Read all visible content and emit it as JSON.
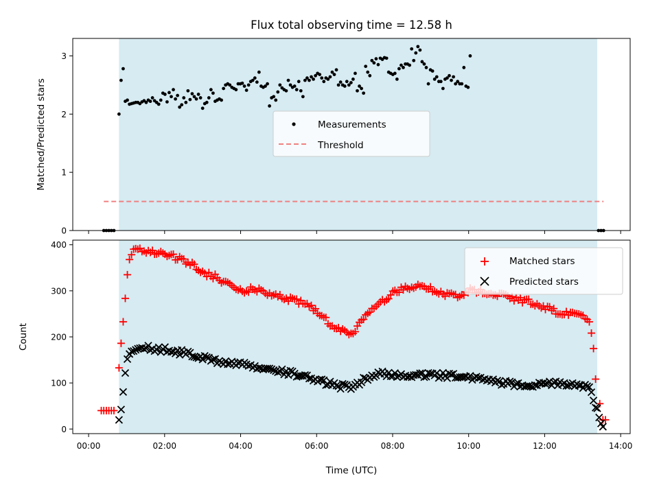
{
  "chart_data": {
    "title": "Flux total observing time = 12.58 h",
    "type": "scatter",
    "shaded_interval": {
      "start": "00:48",
      "end": "13:23",
      "color": "#add8e6"
    },
    "x_axis": {
      "label": "Time (UTC)",
      "ticks": [
        "00:00",
        "02:00",
        "04:00",
        "06:00",
        "08:00",
        "10:00",
        "12:00",
        "14:00"
      ],
      "xlim": [
        "-00:25",
        "14:15"
      ]
    },
    "panels": [
      {
        "name": "top",
        "ylabel": "Matched/Predicted stars",
        "ylim": [
          0,
          3.3
        ],
        "yticks": [
          "0",
          "1",
          "2",
          "3"
        ],
        "legend": {
          "position": "center",
          "entries": [
            "Measurements",
            "Threshold"
          ]
        },
        "series": [
          {
            "name": "Measurements",
            "marker": "dot",
            "color": "#000000",
            "points_before": {
              "x": [
                "00:24",
                "00:28",
                "00:32",
                "00:36",
                "00:40"
              ],
              "y": [
                0,
                0,
                0,
                0,
                0
              ]
            },
            "points_after": {
              "x": [
                "13:25",
                "13:29",
                "13:33"
              ],
              "y": [
                0,
                0,
                0
              ]
            },
            "during": {
              "start": "00:48",
              "end": "13:23",
              "step_minutes": 3.3,
              "y": [
                2.0,
                2.58,
                2.78,
                2.22,
                2.24,
                2.17,
                2.18,
                2.19,
                2.2,
                2.2,
                2.18,
                2.21,
                2.23,
                2.2,
                2.24,
                2.22,
                2.28,
                2.23,
                2.2,
                2.17,
                2.24,
                2.36,
                2.34,
                2.21,
                2.37,
                2.3,
                2.42,
                2.26,
                2.32,
                2.12,
                2.16,
                2.28,
                2.2,
                2.4,
                2.25,
                2.35,
                2.3,
                2.26,
                2.34,
                2.28,
                2.1,
                2.18,
                2.2,
                2.28,
                2.42,
                2.36,
                2.22,
                2.24,
                2.26,
                2.24,
                2.44,
                2.5,
                2.52,
                2.5,
                2.46,
                2.44,
                2.42,
                2.52,
                2.52,
                2.53,
                2.48,
                2.41,
                2.5,
                2.56,
                2.58,
                2.62,
                2.55,
                2.72,
                2.48,
                2.46,
                2.48,
                2.52,
                2.14,
                2.28,
                2.3,
                2.24,
                2.38,
                2.5,
                2.45,
                2.42,
                2.4,
                2.58,
                2.5,
                2.46,
                2.48,
                2.42,
                2.56,
                2.4,
                2.3,
                2.58,
                2.62,
                2.58,
                2.64,
                2.6,
                2.66,
                2.7,
                2.68,
                2.62,
                2.56,
                2.62,
                2.6,
                2.64,
                2.72,
                2.68,
                2.76,
                2.5,
                2.55,
                2.5,
                2.48,
                2.56,
                2.5,
                2.54,
                2.6,
                2.7,
                2.4,
                2.48,
                2.44,
                2.36,
                2.82,
                2.72,
                2.66,
                2.92,
                2.88,
                2.95,
                2.85,
                2.96,
                2.94,
                2.97,
                2.96,
                2.72,
                2.7,
                2.68,
                2.7,
                2.6,
                2.78,
                2.84,
                2.8,
                2.86,
                2.86,
                2.84,
                3.12,
                2.92,
                3.05,
                3.16,
                3.1,
                2.9,
                2.86,
                2.8,
                2.52,
                2.76,
                2.74,
                2.6,
                2.64,
                2.56,
                2.56,
                2.44,
                2.6,
                2.62,
                2.66,
                2.58,
                2.64,
                2.52,
                2.56,
                2.52,
                2.52,
                2.8,
                2.48,
                2.46,
                3.0
              ]
            }
          },
          {
            "name": "Threshold",
            "style": "dashed",
            "color": "#f08080",
            "x": [
              "00:24",
              "13:33"
            ],
            "y": [
              0.5,
              0.5
            ]
          }
        ]
      },
      {
        "name": "bottom",
        "ylabel": "Count",
        "ylim": [
          -10,
          410
        ],
        "yticks": [
          "0",
          "100",
          "200",
          "300",
          "400"
        ],
        "legend": {
          "position": "top-right",
          "entries": [
            "Matched stars",
            "Predicted stars"
          ]
        },
        "series": [
          {
            "name": "Matched stars",
            "marker": "plus",
            "color": "#ff0000",
            "points_before": {
              "x": [
                "00:20",
                "00:24",
                "00:28",
                "00:32",
                "00:36",
                "00:40"
              ],
              "y": [
                40,
                40,
                40,
                40,
                40,
                40
              ]
            },
            "points_after": {
              "x": [
                "13:27",
                "13:32",
                "13:36"
              ],
              "y": [
                55,
                20,
                20
              ]
            },
            "during_start": "00:48",
            "during_end": "13:23",
            "step_minutes": 3.3,
            "anchors": {
              "t": [
                "00:48",
                "00:56",
                "01:00",
                "01:04",
                "01:10",
                "01:20",
                "01:40",
                "02:00",
                "02:20",
                "02:40",
                "03:00",
                "03:20",
                "03:40",
                "04:00",
                "04:20",
                "04:40",
                "05:00",
                "05:20",
                "05:40",
                "06:00",
                "06:20",
                "06:40",
                "06:50",
                "07:00",
                "07:20",
                "07:40",
                "08:00",
                "08:20",
                "08:40",
                "09:00",
                "09:20",
                "09:40",
                "10:00",
                "10:20",
                "10:40",
                "11:00",
                "11:20",
                "11:40",
                "12:00",
                "12:20",
                "12:40",
                "13:00",
                "13:10",
                "13:16",
                "13:20",
                "13:23"
              ],
              "y": [
                128,
                255,
                318,
                370,
                384,
                390,
                385,
                378,
                372,
                360,
                340,
                330,
                315,
                300,
                305,
                295,
                290,
                280,
                275,
                255,
                230,
                215,
                205,
                215,
                250,
                275,
                295,
                305,
                310,
                305,
                295,
                290,
                300,
                300,
                295,
                290,
                280,
                275,
                262,
                255,
                250,
                245,
                232,
                195,
                112,
                70
              ]
            }
          },
          {
            "name": "Predicted stars",
            "marker": "x",
            "color": "#000000",
            "points_after": {
              "x": [
                "13:23",
                "13:26",
                "13:29",
                "13:32"
              ],
              "y": [
                45,
                25,
                12,
                5
              ]
            },
            "during_start": "00:48",
            "during_end": "13:23",
            "step_minutes": 3.3,
            "anchors": {
              "t": [
                "00:48",
                "00:52",
                "00:56",
                "01:00",
                "01:04",
                "01:10",
                "01:20",
                "01:40",
                "02:00",
                "02:30",
                "03:00",
                "03:30",
                "04:00",
                "04:30",
                "05:00",
                "05:30",
                "06:00",
                "06:30",
                "06:50",
                "07:00",
                "07:20",
                "07:40",
                "08:00",
                "08:30",
                "09:00",
                "09:30",
                "10:00",
                "10:30",
                "11:00",
                "11:30",
                "12:00",
                "12:30",
                "13:00",
                "13:10",
                "13:16",
                "13:20"
              ],
              "y": [
                18,
                48,
                95,
                140,
                160,
                170,
                178,
                175,
                172,
                165,
                155,
                145,
                140,
                132,
                125,
                118,
                105,
                95,
                90,
                95,
                110,
                122,
                118,
                118,
                118,
                115,
                110,
                105,
                100,
                92,
                100,
                98,
                95,
                90,
                68,
                45
              ]
            }
          }
        ]
      }
    ]
  }
}
